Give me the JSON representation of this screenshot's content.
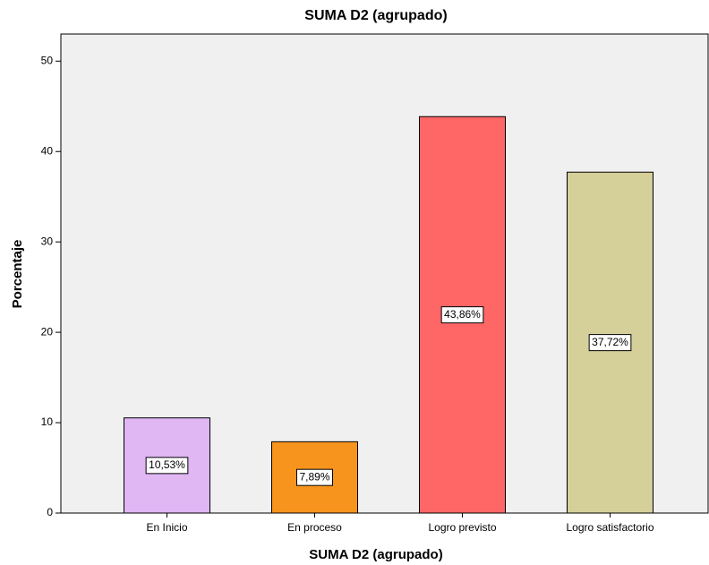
{
  "chart_data": {
    "type": "bar",
    "title": "SUMA D2 (agrupado)",
    "x_label": "SUMA D2 (agrupado)",
    "y_label": "Porcentaje",
    "categories": [
      "En Inicio",
      "En proceso",
      "Logro previsto",
      "Logro satisfactorio"
    ],
    "values": [
      10.53,
      7.89,
      43.86,
      37.72
    ],
    "value_labels": [
      "10,53%",
      "7,89%",
      "43,86%",
      "37,72%"
    ],
    "colors": [
      "#e0b6f3",
      "#f7941d",
      "#ff6666",
      "#d5cf99"
    ],
    "ylim": [
      0,
      53
    ],
    "yticks": [
      0,
      10,
      20,
      30,
      40,
      50
    ],
    "grid": false
  }
}
